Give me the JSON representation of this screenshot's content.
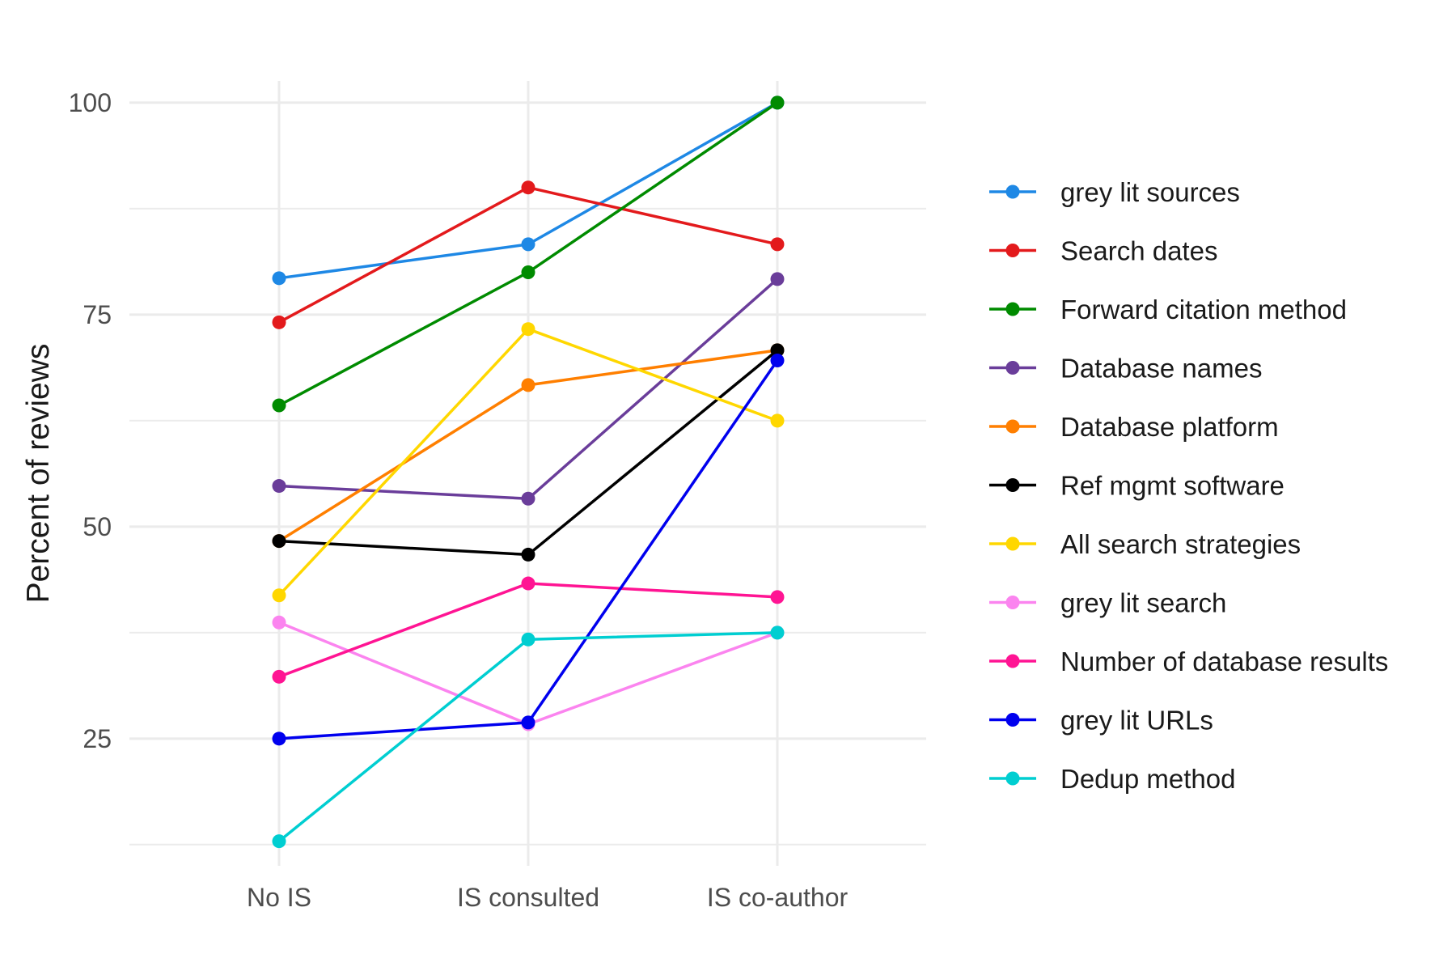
{
  "chart_data": {
    "type": "line",
    "title": "",
    "xlabel": "",
    "ylabel": "Percent of reviews",
    "categories": [
      "No IS",
      "IS consulted",
      "IS co-author"
    ],
    "ylim": [
      10,
      104
    ],
    "y_ticks": [
      25,
      50,
      75,
      100
    ],
    "y_tick_labels": [
      "25",
      "50",
      "75",
      "100"
    ],
    "grid": true,
    "legend_position": "right",
    "series": [
      {
        "name": "grey lit sources",
        "color": "#1e88e5",
        "values": [
          79.3,
          83.3,
          100
        ]
      },
      {
        "name": "Search dates",
        "color": "#e31a1c",
        "values": [
          74.1,
          90,
          83.3
        ]
      },
      {
        "name": "Forward citation method",
        "color": "#008b00",
        "values": [
          64.3,
          80,
          100
        ]
      },
      {
        "name": "Database names",
        "color": "#6a3d9a",
        "values": [
          54.8,
          53.3,
          79.2
        ]
      },
      {
        "name": "Database platform",
        "color": "#ff7f00",
        "values": [
          48.3,
          66.7,
          70.8
        ]
      },
      {
        "name": "Ref mgmt software",
        "color": "#000000",
        "values": [
          48.3,
          46.7,
          70.8
        ]
      },
      {
        "name": "All search strategies",
        "color": "#ffd700",
        "values": [
          41.9,
          73.3,
          62.5
        ]
      },
      {
        "name": "grey lit search",
        "color": "#fb84ef",
        "values": [
          38.7,
          26.7,
          37.5
        ]
      },
      {
        "name": "Number of database results",
        "color": "#ff1493",
        "values": [
          32.3,
          43.3,
          41.7
        ]
      },
      {
        "name": "grey lit URLs",
        "color": "#0000ee",
        "values": [
          25,
          26.9,
          69.6
        ]
      },
      {
        "name": "Dedup method",
        "color": "#00ced1",
        "values": [
          12.9,
          36.7,
          37.5
        ]
      }
    ]
  }
}
